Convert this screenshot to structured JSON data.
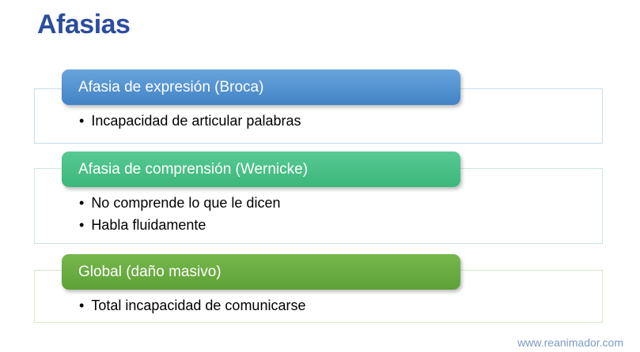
{
  "slide": {
    "title": "Afasias",
    "title_color": "#2B4C9E",
    "watermark": "www.reanimador.com",
    "watermark_color": "#7E99C6",
    "sections": [
      {
        "header": "Afasia de expresión (Broca)",
        "header_color_top": "#68A4DC",
        "header_color_bottom": "#4283C6",
        "box_border_color": "#C7DBEF",
        "bullets": [
          "Incapacidad de articular palabras"
        ]
      },
      {
        "header": "Afasia de comprensión (Wernicke)",
        "header_color_top": "#58C994",
        "header_color_bottom": "#3CB77A",
        "box_border_color": "#CBEADA",
        "bullets": [
          "No comprende lo que le dicen",
          "Habla fluidamente"
        ]
      },
      {
        "header": "Global (daño masivo)",
        "header_color_top": "#78B84D",
        "header_color_bottom": "#5CA136",
        "box_border_color": "#D6E8C5",
        "bullets": [
          "Total incapacidad de comunicarse"
        ]
      }
    ]
  }
}
